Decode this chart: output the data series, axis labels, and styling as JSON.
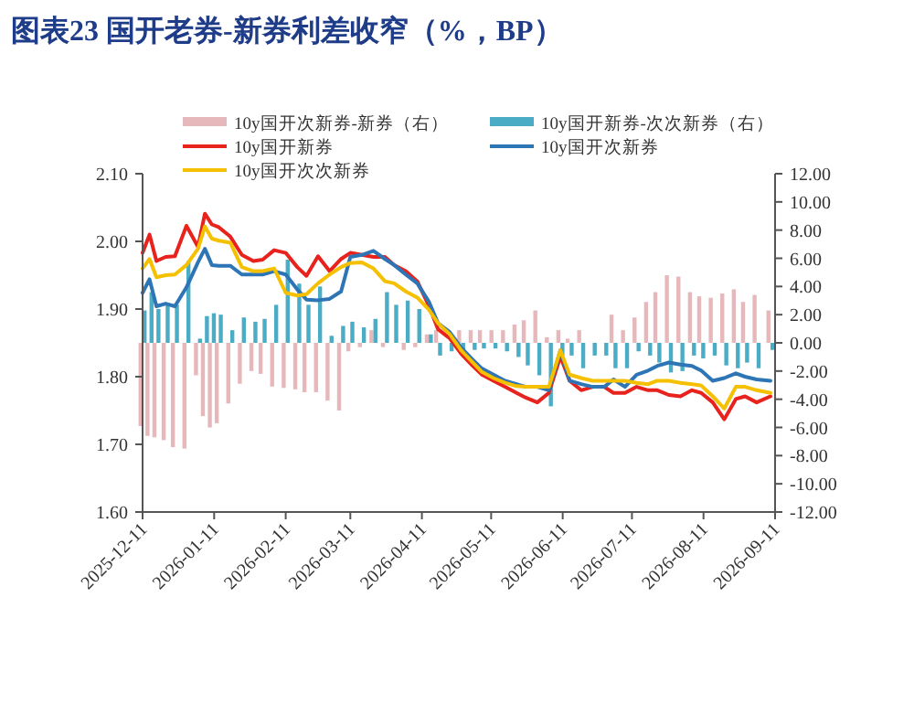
{
  "chart_data": {
    "type": "line",
    "title": "图表23  国开老券-新券利差收窄（%，BP）",
    "x": [
      "2025-12-11",
      "2025-12-14",
      "2025-12-17",
      "2025-12-21",
      "2025-12-25",
      "2025-12-30",
      "2026-01-04",
      "2026-01-07",
      "2026-01-10",
      "2026-01-13",
      "2026-01-18",
      "2026-01-23",
      "2026-01-28",
      "2026-02-01",
      "2026-02-06",
      "2026-02-11",
      "2026-02-16",
      "2026-02-20",
      "2026-02-25",
      "2026-03-02",
      "2026-03-07",
      "2026-03-11",
      "2026-03-16",
      "2026-03-21",
      "2026-03-26",
      "2026-03-30",
      "2026-04-04",
      "2026-04-09",
      "2026-04-14",
      "2026-04-18",
      "2026-04-23",
      "2026-04-28",
      "2026-05-03",
      "2026-05-07",
      "2026-05-12",
      "2026-05-17",
      "2026-05-22",
      "2026-05-26",
      "2026-05-31",
      "2026-06-05",
      "2026-06-10",
      "2026-06-14",
      "2026-06-19",
      "2026-06-24",
      "2026-06-29",
      "2026-07-03",
      "2026-07-08",
      "2026-07-13",
      "2026-07-18",
      "2026-07-22",
      "2026-07-27",
      "2026-08-01",
      "2026-08-06",
      "2026-08-10",
      "2026-08-15",
      "2026-08-20",
      "2026-08-25",
      "2026-08-29",
      "2026-09-03",
      "2026-09-09"
    ],
    "series": [
      {
        "name": "10y国开次新券-新券（右）",
        "type": "bar",
        "axis": "y2",
        "color": "#e6b8bb",
        "values": [
          -5.9,
          -6.6,
          -6.7,
          -6.9,
          -7.4,
          -7.5,
          -2.3,
          -5.2,
          -6.0,
          -5.7,
          -4.3,
          -2.9,
          -2.0,
          -2.2,
          -3.1,
          -3.2,
          -3.3,
          -3.5,
          -3.5,
          -4.1,
          -4.8,
          -0.6,
          -0.3,
          0.9,
          -0.3,
          null,
          -0.5,
          -0.3,
          0.6,
          0.9,
          null,
          0.9,
          0.9,
          0.9,
          0.9,
          0.9,
          1.3,
          1.6,
          2.3,
          0.4,
          0.9,
          0.3,
          0.9,
          null,
          null,
          2.0,
          0.9,
          1.8,
          2.9,
          3.6,
          4.8,
          4.7,
          3.6,
          3.3,
          3.2,
          3.5,
          3.8,
          2.9,
          3.4,
          2.3
        ]
      },
      {
        "name": "10y国开新券-次次新券（右）",
        "type": "bar",
        "axis": "y2",
        "color": "#4bacc6",
        "values": [
          2.3,
          3.6,
          2.4,
          2.7,
          2.7,
          5.8,
          0.3,
          1.9,
          2.1,
          2.0,
          0.9,
          1.8,
          1.5,
          1.7,
          2.7,
          5.9,
          4.2,
          2.7,
          4.0,
          0.5,
          1.2,
          1.5,
          1.1,
          1.7,
          3.6,
          2.7,
          3.0,
          2.4,
          0.6,
          -0.9,
          -0.6,
          -0.5,
          -0.5,
          -0.4,
          -0.4,
          -0.6,
          -1.0,
          -1.6,
          -2.3,
          -4.5,
          -0.9,
          -0.9,
          -1.8,
          -0.9,
          -0.9,
          -1.8,
          -1.8,
          -0.6,
          -0.9,
          -1.4,
          -2.1,
          -2.0,
          -0.9,
          -1.1,
          -0.9,
          -1.6,
          -1.8,
          -1.4,
          -1.8,
          -0.5
        ]
      },
      {
        "name": "10y国开新券",
        "color": "#e8221c",
        "values": [
          1.983,
          2.01,
          1.971,
          1.977,
          1.978,
          2.023,
          1.992,
          2.041,
          2.025,
          2.021,
          2.007,
          1.98,
          1.971,
          1.973,
          1.987,
          1.983,
          1.962,
          1.949,
          1.978,
          1.956,
          1.974,
          1.983,
          1.98,
          1.977,
          1.977,
          1.965,
          1.956,
          1.941,
          1.905,
          1.87,
          1.857,
          1.834,
          1.816,
          1.803,
          1.794,
          1.785,
          1.776,
          1.769,
          1.762,
          1.776,
          1.83,
          1.794,
          1.78,
          1.785,
          1.785,
          1.776,
          1.776,
          1.785,
          1.78,
          1.78,
          1.773,
          1.771,
          1.78,
          1.776,
          1.762,
          1.737,
          1.767,
          1.771,
          1.762,
          1.771
        ]
      },
      {
        "name": "10y国开次新券",
        "color": "#2e75b6",
        "values": [
          1.924,
          1.944,
          1.904,
          1.908,
          1.904,
          1.932,
          1.969,
          1.989,
          1.965,
          1.964,
          1.964,
          1.951,
          1.951,
          1.951,
          1.956,
          1.951,
          1.929,
          1.914,
          1.913,
          1.915,
          1.926,
          1.977,
          1.98,
          1.986,
          1.974,
          1.965,
          1.951,
          1.938,
          1.911,
          1.879,
          1.866,
          1.843,
          1.825,
          1.812,
          1.803,
          1.794,
          1.789,
          1.785,
          1.785,
          1.78,
          1.839,
          1.794,
          1.789,
          1.785,
          1.785,
          1.796,
          1.785,
          1.803,
          1.809,
          1.816,
          1.821,
          1.818,
          1.816,
          1.809,
          1.794,
          1.798,
          1.805,
          1.8,
          1.796,
          1.794
        ]
      },
      {
        "name": "10y国开次次新券",
        "color": "#f5c000",
        "values": [
          1.96,
          1.974,
          1.947,
          1.95,
          1.951,
          1.965,
          1.989,
          2.022,
          2.004,
          2.001,
          1.998,
          1.962,
          1.956,
          1.956,
          1.96,
          1.924,
          1.92,
          1.922,
          1.938,
          1.951,
          1.962,
          1.968,
          1.969,
          1.96,
          1.941,
          1.938,
          1.926,
          1.917,
          1.899,
          1.879,
          1.863,
          1.839,
          1.821,
          1.807,
          1.798,
          1.791,
          1.786,
          1.785,
          1.785,
          1.785,
          1.839,
          1.803,
          1.798,
          1.794,
          1.794,
          1.794,
          1.794,
          1.791,
          1.789,
          1.794,
          1.794,
          1.791,
          1.789,
          1.787,
          1.771,
          1.753,
          1.785,
          1.785,
          1.78,
          1.776
        ]
      }
    ],
    "xlim": [
      "2025-12-11",
      "2026-09-11"
    ],
    "xticks": [
      "2025-12-11",
      "2026-01-11",
      "2026-02-11",
      "2026-03-11",
      "2026-04-11",
      "2026-05-11",
      "2026-06-11",
      "2026-07-11",
      "2026-08-11",
      "2026-09-11"
    ],
    "ylim": [
      1.6,
      2.1
    ],
    "yticks": [
      {
        "value": 1.6,
        "label": "1.60"
      },
      {
        "value": 1.7,
        "label": "1.70"
      },
      {
        "value": 1.8,
        "label": "1.80"
      },
      {
        "value": 1.9,
        "label": "1.90"
      },
      {
        "value": 2.0,
        "label": "2.00"
      },
      {
        "value": 2.1,
        "label": "2.10"
      }
    ],
    "y2lim": [
      -12,
      12
    ],
    "y2ticks": [
      {
        "value": -12,
        "label": "-12.00"
      },
      {
        "value": -10,
        "label": "-10.00"
      },
      {
        "value": -8,
        "label": "-8.00"
      },
      {
        "value": -6,
        "label": "-6.00"
      },
      {
        "value": -4,
        "label": "-4.00"
      },
      {
        "value": -2,
        "label": "-2.00"
      },
      {
        "value": 0,
        "label": "0.00"
      },
      {
        "value": 2,
        "label": "2.00"
      },
      {
        "value": 4,
        "label": "4.00"
      },
      {
        "value": 6,
        "label": "6.00"
      },
      {
        "value": 8,
        "label": "8.00"
      },
      {
        "value": 10,
        "label": "10.00"
      },
      {
        "value": 12,
        "label": "12.00"
      }
    ],
    "grid": false,
    "legend": "top",
    "marker": "none",
    "line_style": "solid"
  }
}
